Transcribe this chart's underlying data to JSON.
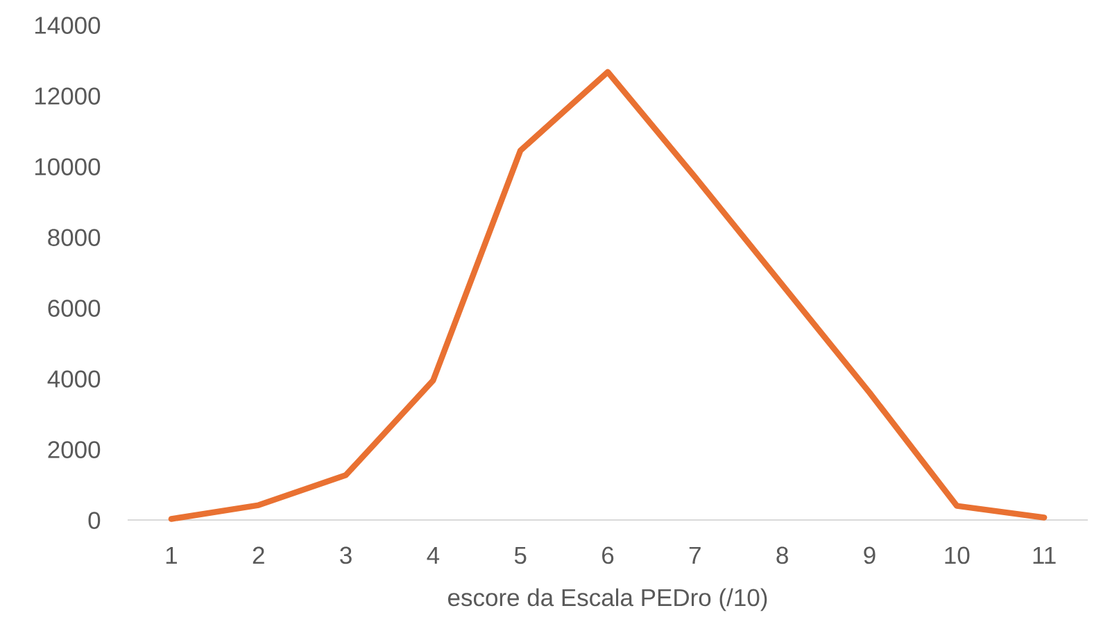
{
  "chart_data": {
    "type": "line",
    "xlabel": "escore da Escala PEDro (/10)",
    "categories": [
      "1",
      "2",
      "3",
      "4",
      "5",
      "6",
      "7",
      "8",
      "9",
      "10",
      "11"
    ],
    "values": [
      30,
      420,
      1270,
      3950,
      10450,
      12670,
      9700,
      6650,
      3600,
      400,
      70
    ],
    "color": "#e97132",
    "ylim": [
      0,
      14000
    ],
    "yticks": [
      0,
      2000,
      4000,
      6000,
      8000,
      10000,
      12000,
      14000
    ]
  }
}
